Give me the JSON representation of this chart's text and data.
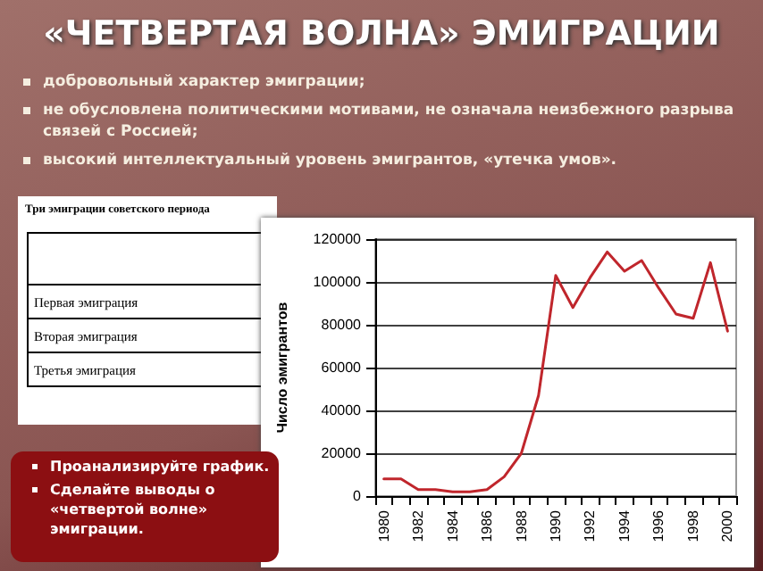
{
  "chart_data": {
    "type": "line",
    "title": "«ЧЕТВЕРТАЯ ВОЛНА» ЭМИГРАЦИИ",
    "annotations": [
      "добровольный характер эмиграции;",
      "не обусловлена политическими мотивами, не означала неизбежного разрыва связей с Россией;",
      "высокий интеллектуальный уровень эмигрантов, «утечка умов».",
      "Три эмиграции советского периода",
      "Первая эмиграция",
      "Вторая эмиграция",
      "Третья эмиграция",
      "Проанализируйте график.",
      "Сделайте выводы о «четвертой волне» эмиграции."
    ],
    "ylabel": "Число эмигрантов",
    "categories": [
      "1980",
      null,
      "1982",
      null,
      "1984",
      null,
      "1986",
      null,
      "1988",
      null,
      "1990",
      null,
      "1992",
      null,
      "1994",
      null,
      "1996",
      null,
      "1998",
      null,
      "2000"
    ],
    "series": [
      {
        "color": "#c0262c",
        "values": [
          8000,
          8000,
          3000,
          3000,
          2000,
          2000,
          3000,
          9000,
          20000,
          47000,
          103000,
          88000,
          102000,
          114000,
          105000,
          110000,
          97000,
          85000,
          83000,
          109000,
          77000
        ]
      }
    ],
    "ylim": [
      0,
      120000
    ],
    "yticks": [
      0,
      20000,
      40000,
      60000,
      80000,
      100000,
      120000
    ],
    "grid": "y",
    "marker": "none",
    "line_style": "solid"
  }
}
